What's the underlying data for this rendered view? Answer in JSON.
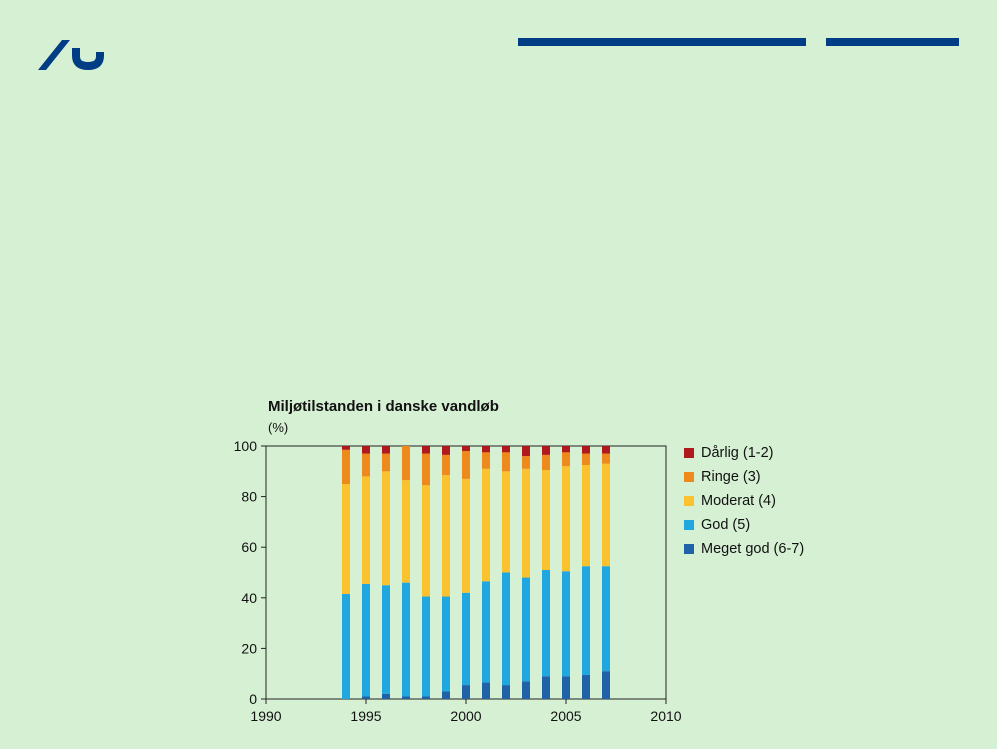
{
  "colors": {
    "background": "#d6f0d4",
    "brand": "#003d85"
  },
  "chart_data": {
    "type": "bar",
    "stacked": true,
    "title": "Miljøtilstanden i danske vandløb",
    "ylabel": "(%)",
    "xlabel": "",
    "xlim": [
      1990,
      2010
    ],
    "ylim": [
      0,
      100
    ],
    "xticks": [
      "1990",
      "1995",
      "2000",
      "2005",
      "2010"
    ],
    "yticks": [
      "0",
      "20",
      "40",
      "60",
      "80",
      "100"
    ],
    "grid": false,
    "legend_position": "right",
    "x": [
      1994,
      1995,
      1996,
      1997,
      1998,
      1999,
      2000,
      2001,
      2002,
      2003,
      2004,
      2005,
      2006,
      2007
    ],
    "series": [
      {
        "name": "Meget god (6-7)",
        "color": "#1f62a8",
        "values": [
          0,
          1,
          2,
          1,
          1,
          3,
          5.5,
          6.5,
          5.5,
          7,
          9,
          9,
          9.5,
          11
        ]
      },
      {
        "name": "God (5)",
        "color": "#20a7e0",
        "values": [
          41.5,
          44.5,
          43,
          45,
          39.5,
          37.5,
          36.5,
          40,
          44.5,
          41,
          42,
          41.5,
          43,
          41.5
        ]
      },
      {
        "name": "Moderat (4)",
        "color": "#f9c22e",
        "values": [
          43.5,
          42.5,
          45,
          40.5,
          44,
          48,
          45,
          44.5,
          40,
          43,
          39.5,
          41.5,
          40,
          40.5
        ]
      },
      {
        "name": "Ringe (3)",
        "color": "#ee8a1c",
        "values": [
          13.5,
          9,
          7,
          13.5,
          12.5,
          8,
          11,
          6.5,
          7.5,
          5,
          6,
          5.5,
          4.5,
          4
        ]
      },
      {
        "name": "Dårlig (1-2)",
        "color": "#b0191e",
        "values": [
          1.5,
          3,
          3,
          0,
          3,
          3.5,
          2,
          2.5,
          2.5,
          4,
          3.5,
          2.5,
          3,
          3
        ]
      }
    ],
    "legend_order": [
      "Dårlig (1-2)",
      "Ringe (3)",
      "Moderat (4)",
      "God (5)",
      "Meget god (6-7)"
    ]
  }
}
